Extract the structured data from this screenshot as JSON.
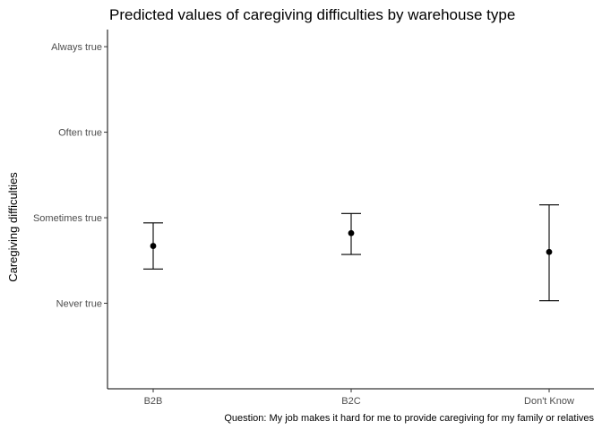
{
  "chart_data": {
    "type": "scatter",
    "title": "Predicted values of caregiving difficulties by warehouse type",
    "xlabel": "",
    "ylabel": "Caregiving difficulties",
    "caption": "Question: My job makes it hard for me to provide caregiving for my family or relatives",
    "categories": [
      "B2B",
      "B2C",
      "Don't Know"
    ],
    "y_tick_values": [
      1,
      2,
      3,
      4
    ],
    "y_tick_labels": [
      "Never true",
      "Sometimes true",
      "Often true",
      "Always true"
    ],
    "ylim": [
      0,
      4.2
    ],
    "series": [
      {
        "values": [
          1.67,
          1.82,
          1.6
        ],
        "lower": [
          1.4,
          1.57,
          1.03
        ],
        "upper": [
          1.94,
          2.05,
          2.15
        ]
      }
    ],
    "grid": false
  }
}
